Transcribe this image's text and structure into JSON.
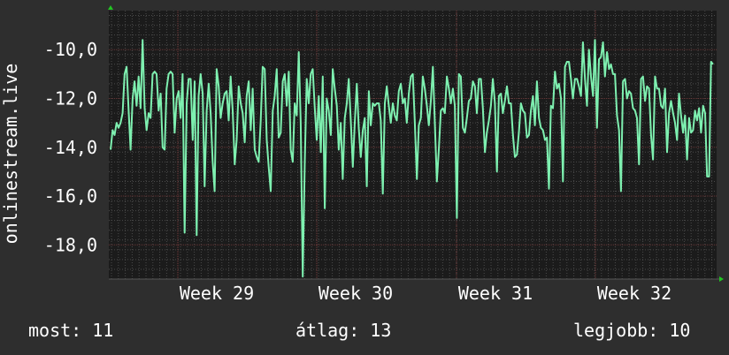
{
  "chart_data": {
    "type": "line",
    "ylabel": "onlinestream.live",
    "ylim": [
      -19.4,
      -8.4
    ],
    "y_ticks": [
      "-10,0",
      "-12,0",
      "-14,0",
      "-16,0",
      "-18,0"
    ],
    "y_tick_values": [
      -10,
      -12,
      -14,
      -16,
      -18
    ],
    "x_tick_labels": [
      "Week 29",
      "Week 30",
      "Week 31",
      "Week 32"
    ],
    "series": [
      {
        "values": [
          -14.1,
          -13.3,
          -13.5,
          -13.0,
          -13.2,
          -13.0,
          -12.6,
          -11.0,
          -10.7,
          -12.5,
          -14.1,
          -12.0,
          -11.3,
          -12.3,
          -11.1,
          -12.4,
          -9.6,
          -12.4,
          -13.3,
          -12.6,
          -12.8,
          -11.0,
          -10.9,
          -11.0,
          -12.5,
          -11.8,
          -14.0,
          -14.1,
          -11.6,
          -11.0,
          -10.9,
          -11.0,
          -13.4,
          -12.0,
          -11.7,
          -12.8,
          -11.0,
          -17.5,
          -12.2,
          -11.2,
          -11.2,
          -13.7,
          -11.3,
          -17.6,
          -11.9,
          -11.0,
          -11.8,
          -15.6,
          -12.5,
          -11.4,
          -12.6,
          -14.6,
          -15.8,
          -10.8,
          -11.5,
          -12.8,
          -12.2,
          -11.8,
          -11.7,
          -12.9,
          -11.1,
          -12.5,
          -14.7,
          -13.7,
          -11.5,
          -12.2,
          -12.6,
          -13.8,
          -11.9,
          -11.3,
          -13.3,
          -11.6,
          -14.1,
          -14.4,
          -14.6,
          -12.9,
          -10.7,
          -10.8,
          -13.7,
          -14.8,
          -15.8,
          -12.5,
          -11.9,
          -10.8,
          -13.6,
          -13.4,
          -11.3,
          -11.0,
          -12.3,
          -10.9,
          -14.1,
          -14.6,
          -12.2,
          -12.7,
          -10.1,
          -13.0,
          -19.3,
          -14.6,
          -11.2,
          -12.2,
          -11.0,
          -10.8,
          -12.4,
          -13.7,
          -11.9,
          -14.2,
          -11.1,
          -16.5,
          -12.0,
          -12.5,
          -13.5,
          -10.8,
          -11.6,
          -12.3,
          -14.1,
          -13.0,
          -15.3,
          -12.8,
          -12.2,
          -11.2,
          -12.9,
          -14.8,
          -13.0,
          -11.4,
          -13.2,
          -14.4,
          -13.3,
          -12.8,
          -15.6,
          -11.7,
          -13.1,
          -12.2,
          -12.3,
          -12.2,
          -12.2,
          -12.9,
          -15.9,
          -12.2,
          -11.5,
          -12.3,
          -13.0,
          -12.2,
          -12.7,
          -12.9,
          -11.7,
          -11.4,
          -12.2,
          -12.0,
          -13.0,
          -11.8,
          -11.1,
          -11.0,
          -13.0,
          -15.3,
          -13.1,
          -12.8,
          -11.1,
          -11.6,
          -12.3,
          -13.1,
          -12.1,
          -10.7,
          -13.0,
          -15.4,
          -14.1,
          -12.5,
          -12.4,
          -12.6,
          -11.1,
          -11.6,
          -12.2,
          -11.6,
          -12.3,
          -16.9,
          -11.0,
          -11.1,
          -13.2,
          -13.4,
          -12.8,
          -12.1,
          -12.0,
          -11.3,
          -11.5,
          -12.6,
          -11.2,
          -11.2,
          -12.4,
          -14.2,
          -13.4,
          -12.9,
          -12.3,
          -11.2,
          -12.2,
          -15.0,
          -11.9,
          -11.8,
          -12.6,
          -12.1,
          -11.5,
          -12.2,
          -12.2,
          -13.5,
          -14.4,
          -14.3,
          -13.4,
          -12.2,
          -12.5,
          -12.6,
          -13.6,
          -13.5,
          -12.5,
          -11.9,
          -13.1,
          -11.3,
          -12.8,
          -13.2,
          -13.3,
          -13.7,
          -13.6,
          -15.7,
          -12.3,
          -12.4,
          -10.9,
          -11.6,
          -11.4,
          -12.0,
          -15.4,
          -10.7,
          -10.5,
          -10.5,
          -11.2,
          -12.0,
          -11.2,
          -11.2,
          -11.5,
          -11.9,
          -9.7,
          -11.2,
          -12.3,
          -10.0,
          -11.1,
          -11.9,
          -9.6,
          -13.2,
          -10.4,
          -10.3,
          -9.7,
          -11.1,
          -10.1,
          -10.8,
          -10.6,
          -11.0,
          -11.0,
          -12.7,
          -13.3,
          -15.8,
          -11.3,
          -11.2,
          -12.0,
          -11.7,
          -11.8,
          -12.4,
          -12.5,
          -12.8,
          -14.7,
          -11.2,
          -11.1,
          -12.1,
          -11.5,
          -11.6,
          -13.5,
          -14.5,
          -11.1,
          -11.6,
          -11.6,
          -12.3,
          -12.4,
          -11.6,
          -14.2,
          -12.6,
          -12.1,
          -12.6,
          -13.0,
          -13.7,
          -11.8,
          -12.7,
          -13.4,
          -12.7,
          -14.5,
          -12.8,
          -13.4,
          -13.3,
          -12.5,
          -12.9,
          -12.4,
          -13.4,
          -12.3,
          -12.6,
          -15.2,
          -15.2,
          -10.5,
          -10.6
        ],
        "color": "#7ef0b0"
      }
    ],
    "grid": true
  },
  "footer": {
    "current_label": "most: 11",
    "average_label": "átlag: 13",
    "best_label": "legjobb: 10"
  },
  "colors": {
    "page_background": "#2e2e2e",
    "plot_background": "#1b1b1b",
    "series": "#7ef0b0",
    "grid": "#4a4a4a",
    "week_grid": "#7a3d3d",
    "axis_arrow": "#22c522",
    "text": "#ffffff"
  }
}
